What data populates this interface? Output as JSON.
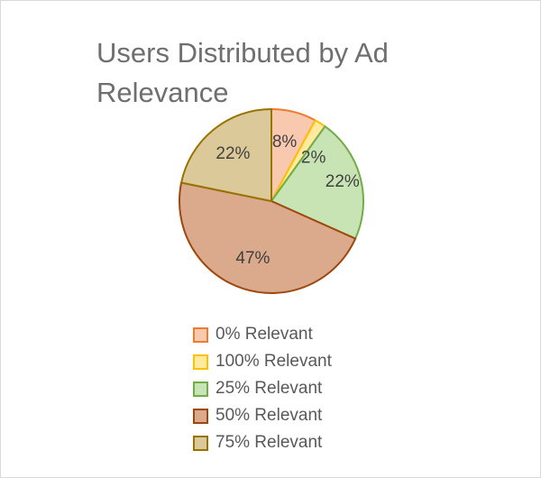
{
  "chart_data": {
    "type": "pie",
    "title": "Users Distributed by Ad Relevance",
    "start_angle_deg": 0,
    "direction": "clockwise",
    "legend_position": "bottom",
    "slices": [
      {
        "name": "0% Relevant",
        "value": 8,
        "label": "8%",
        "fill": "#f8c9ae",
        "stroke": "#ed7d31"
      },
      {
        "name": "100% Relevant",
        "value": 2,
        "label": "2%",
        "fill": "#ffeaa0",
        "stroke": "#ffc000"
      },
      {
        "name": "25% Relevant",
        "value": 22,
        "label": "22%",
        "fill": "#c9e4b4",
        "stroke": "#70ad47"
      },
      {
        "name": "50% Relevant",
        "value": 47,
        "label": "47%",
        "fill": "#dba98b",
        "stroke": "#9e480e"
      },
      {
        "name": "75% Relevant",
        "value": 22,
        "label": "22%",
        "fill": "#dbc99a",
        "stroke": "#997300"
      }
    ]
  }
}
